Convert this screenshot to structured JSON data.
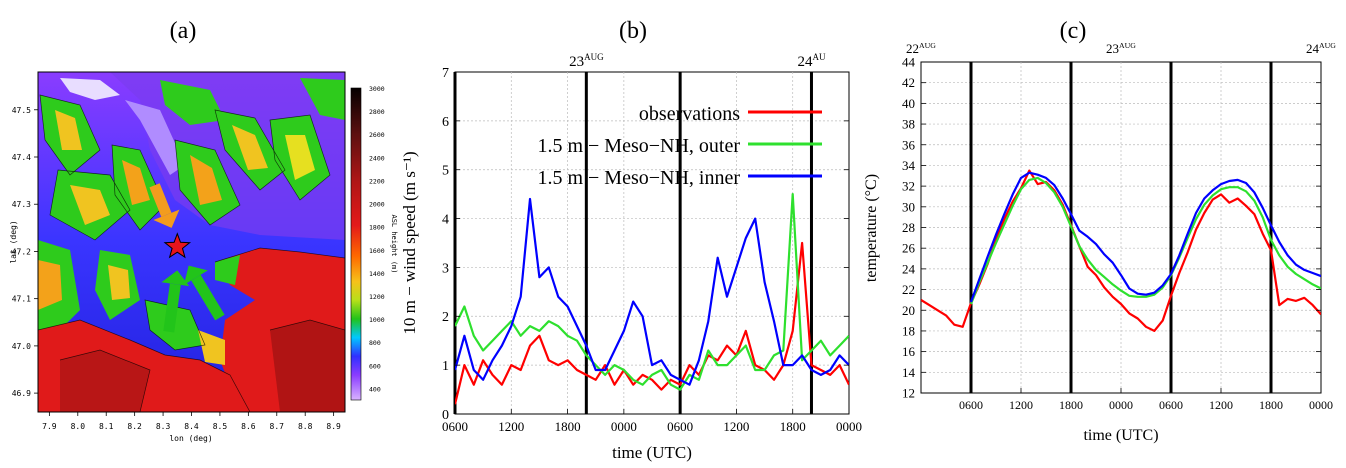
{
  "panels": {
    "a": "(a)",
    "b": "(b)",
    "c": "(c)"
  },
  "chart_data": [
    {
      "type": "heatmap",
      "panel": "(a)",
      "xlabel": "lon (deg)",
      "ylabel": "lat (deg)",
      "colorbar_label": "ASL height (m)",
      "x_ticks": [
        "7.9",
        "8.0",
        "8.1",
        "8.2",
        "8.3",
        "8.4",
        "8.5",
        "8.6",
        "8.7",
        "8.8",
        "8.9"
      ],
      "y_ticks": [
        "47.5",
        "47.4",
        "47.3",
        "47.2",
        "47.1",
        "47.0",
        "46.9"
      ],
      "colorbar_ticks": [
        "3000",
        "2800",
        "2600",
        "2400",
        "2200",
        "2000",
        "1800",
        "1600",
        "1400",
        "1200",
        "1000",
        "800",
        "600",
        "400"
      ],
      "xlim": [
        7.86,
        8.94
      ],
      "ylim": [
        46.86,
        47.58
      ],
      "clim": [
        300,
        3000
      ],
      "marker": {
        "lon": 8.35,
        "lat": 47.21,
        "symbol": "red star"
      },
      "arrows": [
        {
          "color": "#f39c1e",
          "from": [
            8.27,
            47.34
          ],
          "to": [
            8.33,
            47.25
          ]
        },
        {
          "color": "#22c41a",
          "from": [
            8.32,
            47.03
          ],
          "to": [
            8.35,
            47.16
          ]
        },
        {
          "color": "#22c41a",
          "from": [
            8.5,
            47.06
          ],
          "to": [
            8.39,
            47.17
          ]
        }
      ]
    },
    {
      "type": "line",
      "panel": "(b)",
      "xlabel": "time (UTC)",
      "ylabel": "10 m − wind speed (m s⁻¹)",
      "x_tick_labels": [
        "0600",
        "1200",
        "1800",
        "0000",
        "0600",
        "1200",
        "1800",
        "0000"
      ],
      "x_ticks_hours": [
        0,
        6,
        12,
        18,
        24,
        30,
        36,
        42
      ],
      "xlim": [
        0,
        42
      ],
      "ylim": [
        0,
        7
      ],
      "y_ticks": [
        0,
        1,
        2,
        3,
        4,
        5,
        6,
        7
      ],
      "day_markers": [
        {
          "x": 0,
          "label": ""
        },
        {
          "x": 14,
          "label": "23",
          "sup": "AUG"
        },
        {
          "x": 24,
          "label": ""
        },
        {
          "x": 38,
          "label": "24",
          "sup": "AU"
        }
      ],
      "legend": "top-right",
      "series": [
        {
          "name": "observations",
          "color": "#ff0000",
          "x": [
            0,
            1,
            2,
            3,
            4,
            5,
            6,
            7,
            8,
            9,
            10,
            11,
            12,
            13,
            14,
            15,
            16,
            17,
            18,
            19,
            20,
            21,
            22,
            23,
            24,
            25,
            26,
            27,
            28,
            29,
            30,
            31,
            32,
            33,
            34,
            35,
            36,
            37,
            38,
            39,
            40,
            41,
            42
          ],
          "y": [
            0.2,
            1.0,
            0.6,
            1.1,
            0.8,
            0.6,
            1.0,
            0.9,
            1.4,
            1.6,
            1.1,
            1.0,
            1.1,
            0.9,
            0.8,
            0.7,
            1.0,
            0.6,
            0.9,
            0.6,
            0.8,
            0.7,
            0.5,
            0.7,
            0.6,
            1.0,
            0.8,
            1.2,
            1.1,
            1.4,
            1.2,
            1.7,
            1.0,
            0.9,
            0.7,
            1.0,
            1.7,
            3.5,
            1.0,
            0.9,
            0.8,
            1.0,
            0.6
          ]
        },
        {
          "name": "1.5 m − Meso−NH, outer",
          "color": "#2ee02e",
          "x": [
            0,
            1,
            2,
            3,
            4,
            5,
            6,
            7,
            8,
            9,
            10,
            11,
            12,
            13,
            14,
            15,
            16,
            17,
            18,
            19,
            20,
            21,
            22,
            23,
            24,
            25,
            26,
            27,
            28,
            29,
            30,
            31,
            32,
            33,
            34,
            35,
            36,
            37,
            38,
            39,
            40,
            41,
            42
          ],
          "y": [
            1.8,
            2.2,
            1.6,
            1.3,
            1.5,
            1.7,
            1.9,
            1.6,
            1.8,
            1.7,
            1.9,
            1.8,
            1.6,
            1.5,
            1.2,
            1.0,
            0.8,
            1.0,
            0.9,
            0.7,
            0.6,
            0.8,
            0.9,
            0.6,
            0.5,
            0.8,
            0.7,
            1.3,
            1.0,
            1.0,
            1.2,
            1.4,
            0.9,
            0.9,
            1.2,
            1.3,
            4.5,
            1.1,
            1.3,
            1.5,
            1.2,
            1.4,
            1.6
          ]
        },
        {
          "name": "1.5 m − Meso−NH, inner",
          "color": "#0000ff",
          "x": [
            0,
            1,
            2,
            3,
            4,
            5,
            6,
            7,
            8,
            9,
            10,
            11,
            12,
            13,
            14,
            15,
            16,
            17,
            18,
            19,
            20,
            21,
            22,
            23,
            24,
            25,
            26,
            27,
            28,
            29,
            30,
            31,
            32,
            33,
            34,
            35,
            36,
            37,
            38,
            39,
            40,
            41,
            42
          ],
          "y": [
            0.9,
            1.6,
            0.9,
            0.7,
            1.1,
            1.4,
            1.8,
            2.4,
            4.4,
            2.8,
            3.0,
            2.4,
            2.2,
            1.8,
            1.4,
            0.9,
            0.9,
            1.3,
            1.7,
            2.3,
            2.0,
            1.0,
            1.1,
            0.8,
            0.7,
            0.6,
            1.1,
            1.9,
            3.2,
            2.4,
            3.0,
            3.6,
            4.0,
            2.7,
            1.9,
            1.0,
            1.0,
            1.2,
            0.9,
            0.8,
            0.9,
            1.2,
            1.0
          ]
        }
      ]
    },
    {
      "type": "line",
      "panel": "(c)",
      "xlabel": "time (UTC)",
      "ylabel": "temperature (°C)",
      "x_tick_labels": [
        "0600",
        "1200",
        "1800",
        "0000",
        "0600",
        "1200",
        "1800",
        "0000"
      ],
      "x_ticks_hours": [
        6,
        12,
        18,
        24,
        30,
        36,
        42,
        48
      ],
      "xlim": [
        0,
        48
      ],
      "ylim": [
        12,
        44
      ],
      "y_ticks": [
        12,
        14,
        16,
        18,
        20,
        22,
        24,
        26,
        28,
        30,
        32,
        34,
        36,
        38,
        40,
        42,
        44
      ],
      "day_markers": [
        {
          "x": 0,
          "label": "22",
          "sup": "AUG"
        },
        {
          "x": 24,
          "label": "23",
          "sup": "AUG"
        },
        {
          "x": 48,
          "label": "24",
          "sup": "AUG"
        }
      ],
      "vlines": [
        6,
        18,
        30,
        42
      ],
      "series": [
        {
          "name": "observations",
          "color": "#ff0000",
          "x": [
            0,
            1,
            2,
            3,
            4,
            5,
            6,
            7,
            8,
            9,
            10,
            11,
            12,
            13,
            14,
            15,
            16,
            17,
            18,
            19,
            20,
            21,
            22,
            23,
            24,
            25,
            26,
            27,
            28,
            29,
            30,
            31,
            32,
            33,
            34,
            35,
            36,
            37,
            38,
            39,
            40,
            41,
            42,
            43,
            44,
            45,
            46,
            47,
            48
          ],
          "y": [
            21,
            20.5,
            20,
            19.5,
            18.6,
            18.4,
            20.7,
            22.5,
            24.5,
            26.8,
            28.8,
            30.5,
            31.8,
            33.5,
            32.2,
            32.4,
            31.6,
            30.2,
            28.2,
            26.2,
            24.2,
            23.4,
            22.2,
            21.3,
            20.6,
            19.7,
            19.2,
            18.4,
            18,
            19,
            21.4,
            23.6,
            25.6,
            27.8,
            29.4,
            30.7,
            31.2,
            30.4,
            30.8,
            30.1,
            29.3,
            27.4,
            25.8,
            20.5,
            21.1,
            20.9,
            21.2,
            20.5,
            19.6
          ]
        },
        {
          "name": "Meso-NH outer",
          "color": "#2ee02e",
          "x": [
            6,
            7,
            8,
            9,
            10,
            11,
            12,
            13,
            14,
            15,
            16,
            17,
            18,
            19,
            20,
            21,
            22,
            23,
            24,
            25,
            26,
            27,
            28,
            29,
            30,
            31,
            32,
            33,
            34,
            35,
            36,
            37,
            38,
            39,
            40,
            41,
            42,
            43,
            44,
            45,
            46,
            47,
            48
          ],
          "y": [
            20.6,
            22.7,
            24.6,
            26.5,
            28.3,
            30.1,
            31.7,
            32.6,
            32.8,
            32.3,
            31.4,
            30.0,
            28.1,
            26.2,
            24.9,
            23.9,
            23.2,
            22.5,
            21.9,
            21.4,
            21.3,
            21.3,
            21.5,
            22.2,
            23.4,
            25.1,
            27.0,
            28.8,
            30.2,
            31.1,
            31.7,
            31.9,
            31.9,
            31.5,
            30.6,
            29.0,
            26.8,
            25.3,
            24.2,
            23.5,
            23.0,
            22.5,
            22.1
          ]
        },
        {
          "name": "Meso-NH inner",
          "color": "#0000ff",
          "x": [
            6,
            7,
            8,
            9,
            10,
            11,
            12,
            13,
            14,
            15,
            16,
            17,
            18,
            19,
            20,
            21,
            22,
            23,
            24,
            25,
            26,
            27,
            28,
            29,
            30,
            31,
            32,
            33,
            34,
            35,
            36,
            37,
            38,
            39,
            40,
            41,
            42,
            43,
            44,
            45,
            46,
            47,
            48
          ],
          "y": [
            20.8,
            23.0,
            25.2,
            27.3,
            29.3,
            31.2,
            32.8,
            33.3,
            33.1,
            32.8,
            32.1,
            30.8,
            29.3,
            27.7,
            27.1,
            26.4,
            25.4,
            24.6,
            23.4,
            22.1,
            21.6,
            21.5,
            21.7,
            22.4,
            23.5,
            25.3,
            27.4,
            29.4,
            30.8,
            31.6,
            32.2,
            32.5,
            32.6,
            32.3,
            31.4,
            29.9,
            28.2,
            26.6,
            25.3,
            24.4,
            23.9,
            23.6,
            23.3
          ]
        }
      ]
    }
  ]
}
